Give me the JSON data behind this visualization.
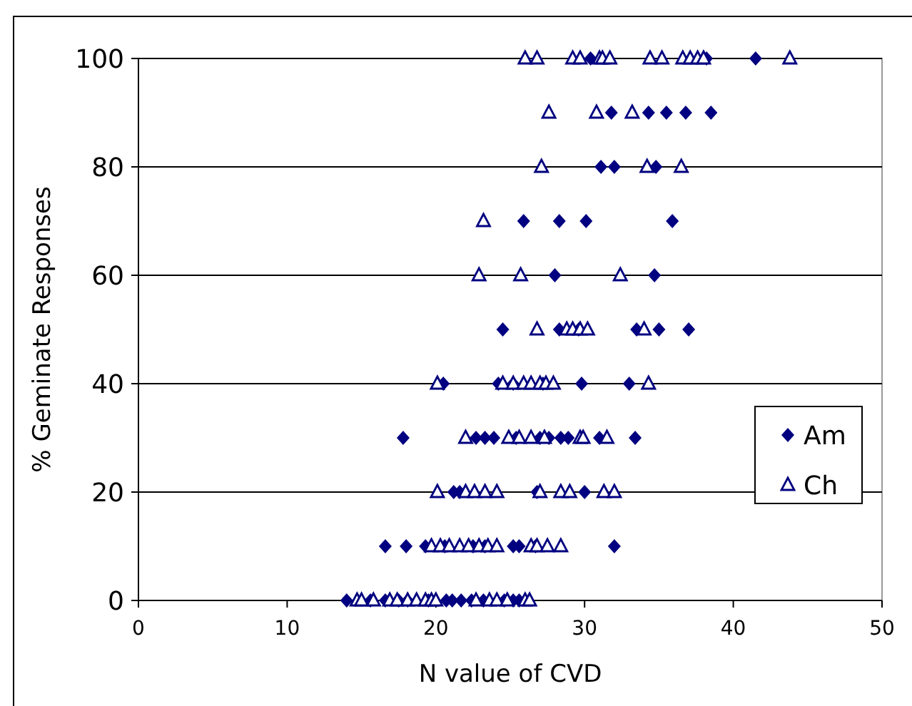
{
  "chart_data": {
    "type": "scatter",
    "xlabel": "N value of CVD",
    "ylabel": "% Geminate Responses",
    "xlim": [
      0,
      50
    ],
    "xticks": [
      0,
      10,
      20,
      30,
      40,
      50
    ],
    "ylim": [
      0,
      100
    ],
    "yticks": [
      0,
      20,
      40,
      60,
      80,
      100
    ],
    "grid": "y",
    "legend": "right",
    "series": [
      {
        "name": "Am",
        "color": "#000080",
        "marker": "diamond",
        "x": [
          30.4,
          38.2,
          41.5,
          31.8,
          34.3,
          35.5,
          36.8,
          38.5,
          31.1,
          32.0,
          34.8,
          25.9,
          28.3,
          30.1,
          35.9,
          28.0,
          34.7,
          24.5,
          28.3,
          29.6,
          33.5,
          35.0,
          37.0,
          20.5,
          24.2,
          25.2,
          27.2,
          29.8,
          33.0,
          17.8,
          22.7,
          23.3,
          23.9,
          25.4,
          27.0,
          27.6,
          28.4,
          28.9,
          31.0,
          33.4,
          21.2,
          21.6,
          26.8,
          30.0,
          16.6,
          18.0,
          19.3,
          20.6,
          22.5,
          23.3,
          25.2,
          25.6,
          26.7,
          32.0,
          14.0,
          15.6,
          16.6,
          17.5,
          18.1,
          19.5,
          20.7,
          21.1,
          21.7,
          22.4,
          23.2,
          24.6,
          25.2,
          25.6
        ],
        "values": [
          100,
          100,
          100,
          90,
          90,
          90,
          90,
          90,
          80,
          80,
          80,
          70,
          70,
          70,
          70,
          60,
          60,
          50,
          50,
          50,
          50,
          50,
          50,
          40,
          40,
          40,
          40,
          40,
          40,
          30,
          30,
          30,
          30,
          30,
          30,
          30,
          30,
          30,
          30,
          30,
          20,
          20,
          20,
          20,
          10,
          10,
          10,
          10,
          10,
          10,
          10,
          10,
          10,
          10,
          0,
          0,
          0,
          0,
          0,
          0,
          0,
          0,
          0,
          0,
          0,
          0,
          0,
          0
        ]
      },
      {
        "name": "Ch",
        "color": "#000080",
        "marker": "triangle",
        "x": [
          26.0,
          26.8,
          29.2,
          29.7,
          31.0,
          31.2,
          31.7,
          34.4,
          35.2,
          36.6,
          37.1,
          37.6,
          38.0,
          43.8,
          27.6,
          30.8,
          33.2,
          27.1,
          34.2,
          36.5,
          23.2,
          22.9,
          25.7,
          32.4,
          26.8,
          28.8,
          29.2,
          29.7,
          30.2,
          34.0,
          20.1,
          24.5,
          25.2,
          25.9,
          26.4,
          27.0,
          27.4,
          27.9,
          34.3,
          22.0,
          24.9,
          25.6,
          26.4,
          27.3,
          29.7,
          29.9,
          31.5,
          20.1,
          22.0,
          22.6,
          23.3,
          24.1,
          27.0,
          28.4,
          29.0,
          31.3,
          32.0,
          19.7,
          20.3,
          20.9,
          21.6,
          22.2,
          22.9,
          23.5,
          24.1,
          26.4,
          26.8,
          27.5,
          28.4,
          14.7,
          15.0,
          15.8,
          16.9,
          17.4,
          18.1,
          18.7,
          19.3,
          19.7,
          20.0,
          22.7,
          23.6,
          24.1,
          24.8,
          26.0,
          26.3
        ],
        "values": [
          100,
          100,
          100,
          100,
          100,
          100,
          100,
          100,
          100,
          100,
          100,
          100,
          100,
          100,
          90,
          90,
          90,
          80,
          80,
          80,
          70,
          60,
          60,
          60,
          50,
          50,
          50,
          50,
          50,
          50,
          40,
          40,
          40,
          40,
          40,
          40,
          40,
          40,
          40,
          30,
          30,
          30,
          30,
          30,
          30,
          30,
          30,
          20,
          20,
          20,
          20,
          20,
          20,
          20,
          20,
          20,
          20,
          10,
          10,
          10,
          10,
          10,
          10,
          10,
          10,
          10,
          10,
          10,
          10,
          0,
          0,
          0,
          0,
          0,
          0,
          0,
          0,
          0,
          0,
          0,
          0,
          0,
          0,
          0,
          0
        ]
      }
    ]
  }
}
